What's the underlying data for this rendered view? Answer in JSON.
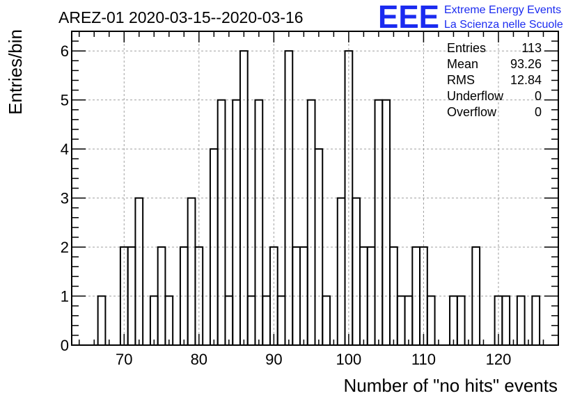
{
  "chart_data": {
    "type": "bar",
    "title": "AREZ-01 2020-03-15--2020-03-16",
    "xlabel": "Number of \"no hits\" events",
    "ylabel": "Entries/bin",
    "xlim": [
      63,
      128
    ],
    "ylim": [
      0,
      6.4
    ],
    "grid": true,
    "x_ticks": [
      "70",
      "80",
      "90",
      "100",
      "110",
      "120"
    ],
    "y_ticks": [
      "0",
      "1",
      "2",
      "3",
      "4",
      "5",
      "6"
    ],
    "bins": [
      {
        "x": 66,
        "count": 0
      },
      {
        "x": 67,
        "count": 1
      },
      {
        "x": 68,
        "count": 0
      },
      {
        "x": 69,
        "count": 0
      },
      {
        "x": 70,
        "count": 2
      },
      {
        "x": 71,
        "count": 2
      },
      {
        "x": 72,
        "count": 3
      },
      {
        "x": 73,
        "count": 0
      },
      {
        "x": 74,
        "count": 1
      },
      {
        "x": 75,
        "count": 2
      },
      {
        "x": 76,
        "count": 1
      },
      {
        "x": 77,
        "count": 0
      },
      {
        "x": 78,
        "count": 2
      },
      {
        "x": 79,
        "count": 3
      },
      {
        "x": 80,
        "count": 2
      },
      {
        "x": 81,
        "count": 0
      },
      {
        "x": 82,
        "count": 4
      },
      {
        "x": 83,
        "count": 5
      },
      {
        "x": 84,
        "count": 1
      },
      {
        "x": 85,
        "count": 5
      },
      {
        "x": 86,
        "count": 6
      },
      {
        "x": 87,
        "count": 1
      },
      {
        "x": 88,
        "count": 5
      },
      {
        "x": 89,
        "count": 1
      },
      {
        "x": 90,
        "count": 2
      },
      {
        "x": 91,
        "count": 1
      },
      {
        "x": 92,
        "count": 6
      },
      {
        "x": 93,
        "count": 2
      },
      {
        "x": 94,
        "count": 2
      },
      {
        "x": 95,
        "count": 5
      },
      {
        "x": 96,
        "count": 4
      },
      {
        "x": 97,
        "count": 1
      },
      {
        "x": 98,
        "count": 0
      },
      {
        "x": 99,
        "count": 3
      },
      {
        "x": 100,
        "count": 6
      },
      {
        "x": 101,
        "count": 3
      },
      {
        "x": 102,
        "count": 2
      },
      {
        "x": 103,
        "count": 2
      },
      {
        "x": 104,
        "count": 5
      },
      {
        "x": 105,
        "count": 5
      },
      {
        "x": 106,
        "count": 2
      },
      {
        "x": 107,
        "count": 1
      },
      {
        "x": 108,
        "count": 1
      },
      {
        "x": 109,
        "count": 2
      },
      {
        "x": 110,
        "count": 2
      },
      {
        "x": 111,
        "count": 1
      },
      {
        "x": 112,
        "count": 0
      },
      {
        "x": 113,
        "count": 0
      },
      {
        "x": 114,
        "count": 1
      },
      {
        "x": 115,
        "count": 1
      },
      {
        "x": 116,
        "count": 0
      },
      {
        "x": 117,
        "count": 2
      },
      {
        "x": 118,
        "count": 0
      },
      {
        "x": 119,
        "count": 0
      },
      {
        "x": 120,
        "count": 1
      },
      {
        "x": 121,
        "count": 1
      },
      {
        "x": 122,
        "count": 0
      },
      {
        "x": 123,
        "count": 1
      },
      {
        "x": 124,
        "count": 0
      },
      {
        "x": 125,
        "count": 1
      },
      {
        "x": 126,
        "count": 0
      }
    ],
    "stats": [
      {
        "label": "Entries",
        "value": "113"
      },
      {
        "label": "Mean",
        "value": "93.26"
      },
      {
        "label": "RMS",
        "value": "12.84"
      },
      {
        "label": "Underflow",
        "value": "0"
      },
      {
        "label": "Overflow",
        "value": "0"
      }
    ]
  },
  "logo": {
    "mark": "EEE",
    "line1": "Extreme Energy Events",
    "line2": "La Scienza nelle Scuole"
  },
  "colors": {
    "logo": "#1b2bf0",
    "grid": "#a0a0a0",
    "line": "#000000"
  }
}
